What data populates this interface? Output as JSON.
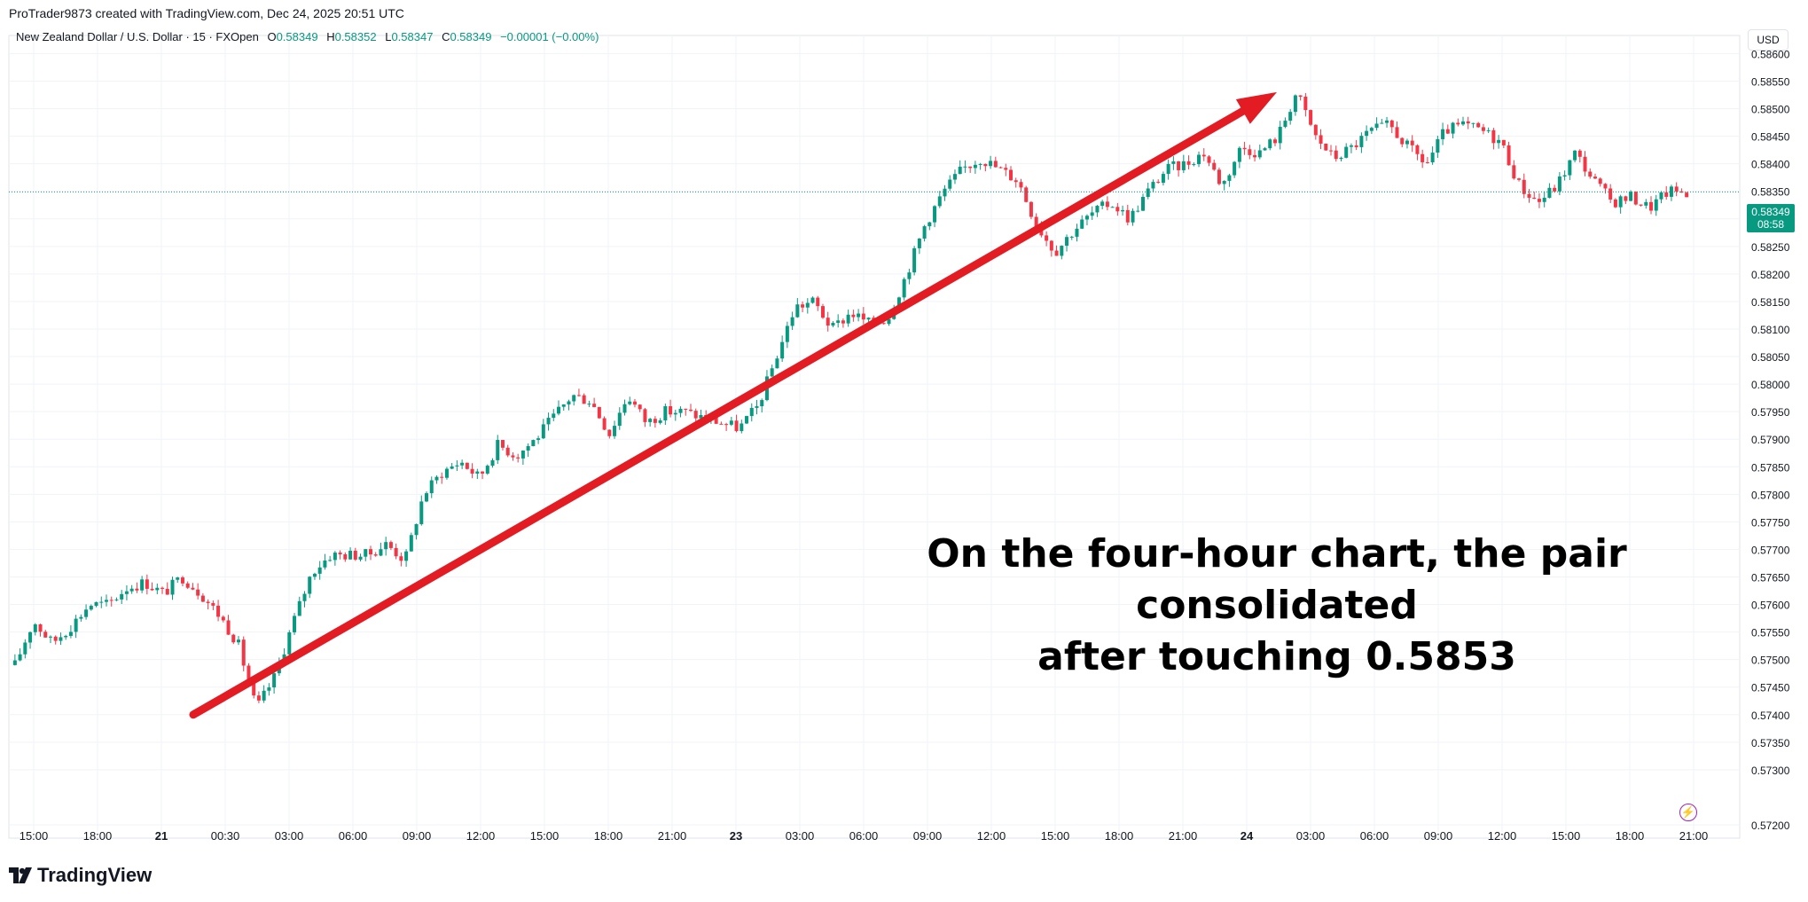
{
  "header": {
    "created_by": "ProTrader9873 created with TradingView.com, Dec 24, 2025 20:51 UTC",
    "symbol": "New Zealand Dollar / U.S. Dollar · 15 · FXOpen",
    "open_label": "O",
    "open_value": "0.58349",
    "high_label": "H",
    "high_value": "0.58352",
    "low_label": "L",
    "low_value": "0.58347",
    "close_label": "C",
    "close_value": "0.58349",
    "change": "−0.00001 (−0.00%)"
  },
  "currency": "USD",
  "last_price": {
    "value": "0.58349",
    "countdown": "08:58"
  },
  "annotation": {
    "line1": "On the four-hour chart, the pair consolidated",
    "line2": "after touching 0.5853"
  },
  "brand": "TradingView",
  "colors": {
    "up": "#089981",
    "down": "#f23645",
    "arrow": "#e31b23",
    "grid": "#f0f3fa"
  },
  "chart_data": {
    "type": "candlestick",
    "ylim": [
      0.572,
      0.5862
    ],
    "y_ticks": [
      "0.58600",
      "0.58550",
      "0.58500",
      "0.58450",
      "0.58400",
      "0.58350",
      "0.58300",
      "0.58250",
      "0.58200",
      "0.58150",
      "0.58100",
      "0.58050",
      "0.58000",
      "0.57950",
      "0.57900",
      "0.57850",
      "0.57800",
      "0.57750",
      "0.57700",
      "0.57650",
      "0.57600",
      "0.57550",
      "0.57500",
      "0.57450",
      "0.57400",
      "0.57350",
      "0.57300",
      "0.57200"
    ],
    "x_ticks": [
      "15:00",
      "18:00",
      "21",
      "00:30",
      "03:00",
      "06:00",
      "09:00",
      "12:00",
      "15:00",
      "18:00",
      "21:00",
      "23",
      "03:00",
      "06:00",
      "09:00",
      "12:00",
      "15:00",
      "18:00",
      "21:00",
      "24",
      "03:00",
      "06:00",
      "09:00",
      "12:00",
      "15:00",
      "18:00",
      "21:00"
    ],
    "x_tick_bold": [
      false,
      false,
      true,
      false,
      false,
      false,
      false,
      false,
      false,
      false,
      false,
      true,
      false,
      false,
      false,
      false,
      false,
      false,
      false,
      true,
      false,
      false,
      false,
      false,
      false,
      false,
      false
    ],
    "close_path": [
      0.5749,
      0.5757,
      0.5753,
      0.5756,
      0.576,
      0.576,
      0.5763,
      0.5764,
      0.5762,
      0.5765,
      0.5762,
      0.5758,
      0.5753,
      0.5741,
      0.5747,
      0.5757,
      0.5766,
      0.5769,
      0.5769,
      0.5769,
      0.5771,
      0.5768,
      0.578,
      0.5784,
      0.5786,
      0.5783,
      0.5789,
      0.5787,
      0.579,
      0.5794,
      0.5798,
      0.5797,
      0.5791,
      0.5798,
      0.5793,
      0.5795,
      0.5795,
      0.5794,
      0.5793,
      0.5792,
      0.5796,
      0.5805,
      0.5814,
      0.5815,
      0.581,
      0.5813,
      0.5811,
      0.5812,
      0.582,
      0.5829,
      0.5835,
      0.5839,
      0.5841,
      0.5839,
      0.5837,
      0.5829,
      0.5824,
      0.5828,
      0.5831,
      0.5833,
      0.583,
      0.5835,
      0.5839,
      0.584,
      0.5842,
      0.5836,
      0.5843,
      0.5842,
      0.5845,
      0.5853,
      0.5845,
      0.5841,
      0.5843,
      0.5846,
      0.5847,
      0.5843,
      0.584,
      0.5846,
      0.5847,
      0.5846,
      0.5844,
      0.5836,
      0.5833,
      0.5836,
      0.5842,
      0.5837,
      0.5833,
      0.5834,
      0.5832,
      0.5835,
      0.58349
    ],
    "last_price_line": 0.58349,
    "trend_arrow": {
      "from": 0.574,
      "to": 0.5853
    }
  }
}
